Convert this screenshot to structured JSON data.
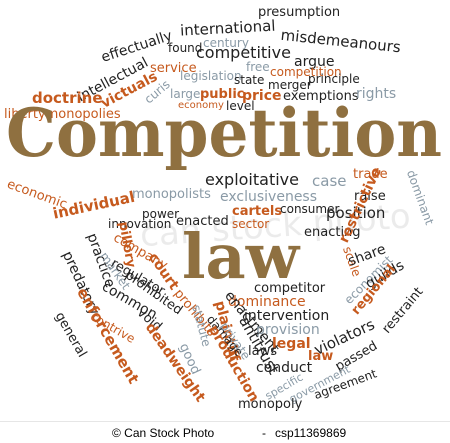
{
  "colors": {
    "gold": "#8f7040",
    "dark": "#222222",
    "orange": "#c65a1e",
    "grey": "#8a9aa6",
    "light": "#b9c3cb"
  },
  "title_word": "Competition",
  "law_word": "law",
  "watermark": "can stock photo",
  "words": {
    "presumption": "presumption",
    "international": "international",
    "century": "century",
    "effectually": "effectually",
    "misdemeanours": "misdemeanours",
    "intellectual": "intellectual",
    "found": "found",
    "competitive": "competitive",
    "victuals": "victuals",
    "service": "service",
    "argue": "argue",
    "doctrine": "doctrine",
    "curis": "curis",
    "legislation": "legislation",
    "free": "free",
    "competition_small": "competition",
    "libertymonopolies": "libertymonopolies",
    "state": "state",
    "merger": "merger",
    "principle": "principle",
    "large": "large",
    "public": "public",
    "price": "price",
    "exemptions": "exemptions",
    "rights": "rights",
    "economy": "economy",
    "level": "level",
    "exploitative": "exploitative",
    "case": "case",
    "trade": "trade",
    "dominant": "dominant",
    "monopolists": "monopolists",
    "exclusiveness": "exclusiveness",
    "raise": "raise",
    "economic": "economic",
    "individual": "individual",
    "cartels": "cartels",
    "consumer": "consumer",
    "position": "position",
    "power": "power",
    "enacted": "enacted",
    "sector": "sector",
    "enacting": "enacting",
    "restrictive": "restrictive",
    "innovation": "innovation",
    "pillory": "pillory",
    "practice": "practice",
    "company": "company",
    "scale": "scale",
    "share": "share",
    "predatory": "predatory",
    "market": "market",
    "court": "court",
    "regulator": "regulator",
    "economist": "economist",
    "guilds": "guilds",
    "common": "common",
    "prohibited": "prohibited",
    "competitor": "competitor",
    "regional": "regional",
    "dominance": "dominance",
    "restraint": "restraint",
    "enforcement": "enforcement",
    "general": "general",
    "contrive": "contrive",
    "void": "void",
    "prohibits": "prohibits",
    "plaintiff": "plaintiff",
    "statute": "statute",
    "enactment": "enactment",
    "intervention": "intervention",
    "provision": "provision",
    "legal": "legal",
    "violators": "violators",
    "damage": "damage",
    "private": "private",
    "antitrust": "antitrust",
    "laws": "laws",
    "law_small": "law",
    "passed": "passed",
    "deadweight": "deadweight",
    "good": "good",
    "production": "production",
    "conduct": "conduct",
    "specific": "specific",
    "government": "government",
    "agreement": "agreement",
    "monopoly": "monopoly"
  },
  "footer": {
    "credit": "© Can Stock Photo",
    "separator": "-",
    "id": "csp11369869"
  }
}
